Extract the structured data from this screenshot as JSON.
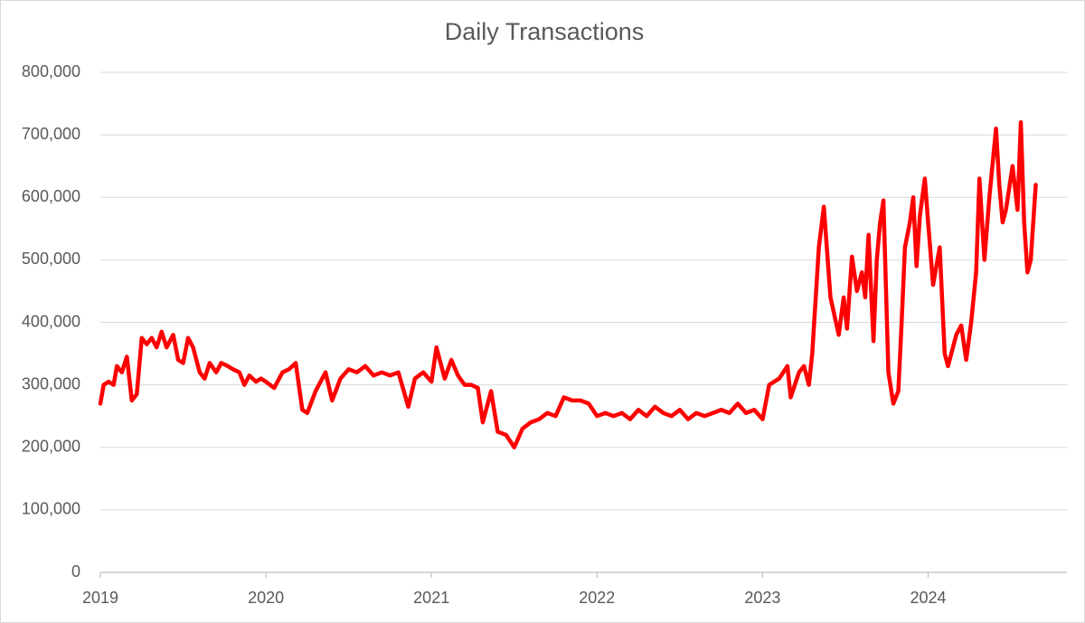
{
  "chart_data": {
    "type": "line",
    "title": "Daily Transactions",
    "color": "#ff0000",
    "grid": true,
    "xlim": [
      2019,
      2024.84
    ],
    "xticks": [
      2019,
      2020,
      2021,
      2022,
      2023,
      2024
    ],
    "ylim": [
      0,
      800000
    ],
    "yticks": [
      0,
      {
        "value": 100000,
        "label": "100,000"
      },
      {
        "value": 200000,
        "label": "200,000"
      },
      {
        "value": 300000,
        "label": "300,000"
      },
      {
        "value": 400000,
        "label": "400,000"
      },
      {
        "value": 500000,
        "label": "500,000"
      },
      {
        "value": 600000,
        "label": "600,000"
      },
      {
        "value": 700000,
        "label": "700,000"
      },
      {
        "value": 800000,
        "label": "800,000"
      }
    ],
    "x": [
      2019.0,
      2019.02,
      2019.05,
      2019.08,
      2019.1,
      2019.13,
      2019.16,
      2019.19,
      2019.22,
      2019.25,
      2019.28,
      2019.31,
      2019.34,
      2019.37,
      2019.4,
      2019.44,
      2019.47,
      2019.5,
      2019.53,
      2019.56,
      2019.6,
      2019.63,
      2019.66,
      2019.7,
      2019.73,
      2019.77,
      2019.8,
      2019.84,
      2019.87,
      2019.9,
      2019.94,
      2019.97,
      2020.0,
      2020.05,
      2020.1,
      2020.14,
      2020.18,
      2020.22,
      2020.25,
      2020.3,
      2020.36,
      2020.4,
      2020.45,
      2020.5,
      2020.55,
      2020.6,
      2020.65,
      2020.7,
      2020.75,
      2020.8,
      2020.86,
      2020.9,
      2020.95,
      2021.0,
      2021.03,
      2021.08,
      2021.12,
      2021.16,
      2021.2,
      2021.24,
      2021.28,
      2021.31,
      2021.36,
      2021.4,
      2021.45,
      2021.5,
      2021.55,
      2021.6,
      2021.65,
      2021.7,
      2021.75,
      2021.8,
      2021.85,
      2021.9,
      2021.95,
      2022.0,
      2022.05,
      2022.1,
      2022.15,
      2022.2,
      2022.25,
      2022.3,
      2022.35,
      2022.4,
      2022.45,
      2022.5,
      2022.55,
      2022.6,
      2022.65,
      2022.7,
      2022.75,
      2022.8,
      2022.85,
      2022.9,
      2022.95,
      2023.0,
      2023.04,
      2023.1,
      2023.15,
      2023.17,
      2023.22,
      2023.25,
      2023.28,
      2023.3,
      2023.34,
      2023.37,
      2023.41,
      2023.46,
      2023.49,
      2023.51,
      2023.54,
      2023.57,
      2023.6,
      2023.62,
      2023.64,
      2023.67,
      2023.69,
      2023.71,
      2023.73,
      2023.76,
      2023.79,
      2023.82,
      2023.84,
      2023.86,
      2023.89,
      2023.91,
      2023.93,
      2023.95,
      2023.98,
      2024.0,
      2024.03,
      2024.07,
      2024.1,
      2024.12,
      2024.17,
      2024.2,
      2024.23,
      2024.26,
      2024.29,
      2024.31,
      2024.34,
      2024.37,
      2024.41,
      2024.43,
      2024.45,
      2024.47,
      2024.51,
      2024.54,
      2024.56,
      2024.58,
      2024.6,
      2024.62,
      2024.65
    ],
    "values": [
      270000,
      300000,
      305000,
      300000,
      330000,
      320000,
      345000,
      275000,
      285000,
      375000,
      365000,
      375000,
      360000,
      385000,
      360000,
      380000,
      340000,
      335000,
      375000,
      360000,
      320000,
      310000,
      335000,
      320000,
      335000,
      330000,
      325000,
      320000,
      300000,
      315000,
      305000,
      310000,
      305000,
      295000,
      320000,
      325000,
      335000,
      260000,
      255000,
      290000,
      320000,
      275000,
      310000,
      325000,
      320000,
      330000,
      315000,
      320000,
      315000,
      320000,
      265000,
      310000,
      320000,
      305000,
      360000,
      310000,
      340000,
      315000,
      300000,
      300000,
      295000,
      240000,
      290000,
      225000,
      220000,
      200000,
      230000,
      240000,
      245000,
      255000,
      250000,
      280000,
      275000,
      275000,
      270000,
      250000,
      255000,
      250000,
      255000,
      245000,
      260000,
      250000,
      265000,
      255000,
      250000,
      260000,
      245000,
      255000,
      250000,
      255000,
      260000,
      255000,
      270000,
      255000,
      260000,
      245000,
      300000,
      310000,
      330000,
      280000,
      320000,
      330000,
      300000,
      350000,
      520000,
      585000,
      440000,
      380000,
      440000,
      390000,
      505000,
      450000,
      480000,
      440000,
      540000,
      370000,
      500000,
      560000,
      595000,
      320000,
      270000,
      290000,
      400000,
      520000,
      560000,
      600000,
      490000,
      570000,
      630000,
      560000,
      460000,
      520000,
      350000,
      330000,
      380000,
      395000,
      340000,
      400000,
      480000,
      630000,
      500000,
      600000,
      710000,
      620000,
      560000,
      580000,
      650000,
      580000,
      720000,
      560000,
      480000,
      500000,
      620000
    ]
  }
}
